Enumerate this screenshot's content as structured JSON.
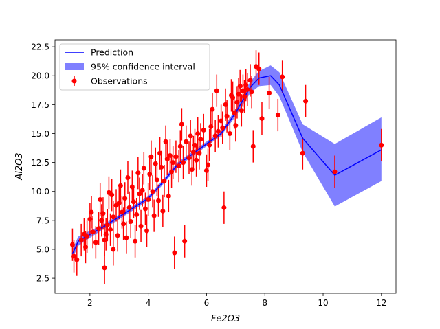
{
  "chart_data": {
    "type": "line",
    "xlabel": "Fe2O3",
    "ylabel": "Al2O3",
    "xlim": [
      0.8,
      12.5
    ],
    "ylim": [
      1.2,
      23.1
    ],
    "xticks": [
      2,
      4,
      6,
      8,
      10,
      12
    ],
    "yticks": [
      2.5,
      5.0,
      7.5,
      10.0,
      12.5,
      15.0,
      17.5,
      20.0,
      22.5
    ],
    "xtick_labels": [
      "2",
      "4",
      "6",
      "8",
      "10",
      "12"
    ],
    "ytick_labels": [
      "2.5",
      "5.0",
      "7.5",
      "10.0",
      "12.5",
      "15.0",
      "17.5",
      "20.0",
      "22.5"
    ],
    "grid": false,
    "legend_position": "top-left",
    "legend": [
      "Prediction",
      "95% confidence interval",
      "Observations"
    ],
    "colors": {
      "prediction": "#0000ff",
      "band": "#8080ff",
      "observations": "#ff0000"
    },
    "series": [
      {
        "name": "Prediction",
        "type": "line",
        "x": [
          1.4,
          1.6,
          2.0,
          2.5,
          3.0,
          3.5,
          4.0,
          4.5,
          5.0,
          5.5,
          6.0,
          6.5,
          7.0,
          7.5,
          7.8,
          8.2,
          8.5,
          9.3,
          10.4,
          12.0
        ],
        "y": [
          4.6,
          5.7,
          6.3,
          7.0,
          7.8,
          8.6,
          9.4,
          10.8,
          12.3,
          13.2,
          14.1,
          15.0,
          16.8,
          19.0,
          19.8,
          20.0,
          19.2,
          14.6,
          11.4,
          13.6
        ]
      },
      {
        "name": "95% confidence interval",
        "type": "band",
        "x": [
          1.4,
          1.6,
          2.0,
          2.5,
          3.0,
          3.5,
          4.0,
          4.5,
          5.0,
          5.5,
          6.0,
          6.5,
          7.0,
          7.5,
          7.8,
          8.2,
          8.5,
          9.3,
          10.4,
          12.0
        ],
        "lower": [
          4.2,
          5.3,
          6.0,
          6.8,
          7.6,
          8.4,
          9.2,
          10.6,
          12.1,
          13.0,
          13.9,
          14.8,
          16.5,
          18.5,
          19.1,
          19.2,
          18.2,
          13.4,
          8.7,
          10.9
        ],
        "upper": [
          5.0,
          6.1,
          6.6,
          7.2,
          8.0,
          8.8,
          9.6,
          11.0,
          12.5,
          13.4,
          14.3,
          15.2,
          17.1,
          19.5,
          20.4,
          20.9,
          20.3,
          15.8,
          14.1,
          16.4
        ]
      },
      {
        "name": "Observations",
        "type": "scatter_errorbar",
        "points": [
          [
            1.4,
            5.4
          ],
          [
            1.45,
            4.4
          ],
          [
            1.55,
            4.1
          ],
          [
            1.7,
            5.8
          ],
          [
            1.8,
            6.3
          ],
          [
            1.85,
            5.2
          ],
          [
            1.9,
            6.1
          ],
          [
            2.0,
            7.6
          ],
          [
            2.05,
            8.2
          ],
          [
            2.1,
            6.5
          ],
          [
            2.2,
            5.6
          ],
          [
            2.3,
            6.8
          ],
          [
            2.35,
            9.3
          ],
          [
            2.4,
            7.5
          ],
          [
            2.45,
            8.1
          ],
          [
            2.5,
            5.8
          ],
          [
            2.5,
            3.4
          ],
          [
            2.55,
            6.3
          ],
          [
            2.6,
            7.1
          ],
          [
            2.65,
            9.9
          ],
          [
            2.7,
            6.7
          ],
          [
            2.75,
            9.7
          ],
          [
            2.8,
            7.8
          ],
          [
            2.8,
            5.0
          ],
          [
            2.9,
            8.8
          ],
          [
            2.95,
            6.2
          ],
          [
            3.0,
            9.0
          ],
          [
            3.05,
            10.5
          ],
          [
            3.1,
            8.2
          ],
          [
            3.15,
            7.2
          ],
          [
            3.2,
            9.4
          ],
          [
            3.25,
            6.0
          ],
          [
            3.3,
            11.2
          ],
          [
            3.35,
            8.6
          ],
          [
            3.4,
            7.4
          ],
          [
            3.45,
            10.4
          ],
          [
            3.5,
            9.1
          ],
          [
            3.55,
            5.7
          ],
          [
            3.6,
            8.0
          ],
          [
            3.65,
            11.6
          ],
          [
            3.7,
            9.8
          ],
          [
            3.75,
            7.0
          ],
          [
            3.8,
            10.1
          ],
          [
            3.85,
            12.0
          ],
          [
            3.9,
            8.5
          ],
          [
            3.95,
            6.6
          ],
          [
            4.0,
            9.3
          ],
          [
            4.05,
            11.5
          ],
          [
            4.1,
            13.0
          ],
          [
            4.15,
            10.0
          ],
          [
            4.2,
            7.9
          ],
          [
            4.25,
            12.4
          ],
          [
            4.3,
            11.0
          ],
          [
            4.35,
            9.2
          ],
          [
            4.4,
            13.3
          ],
          [
            4.45,
            12.1
          ],
          [
            4.5,
            8.3
          ],
          [
            4.55,
            10.9
          ],
          [
            4.6,
            14.3
          ],
          [
            4.65,
            12.8
          ],
          [
            4.7,
            9.6
          ],
          [
            4.75,
            13.1
          ],
          [
            4.8,
            11.7
          ],
          [
            4.85,
            12.5
          ],
          [
            4.9,
            4.7
          ],
          [
            4.95,
            13.0
          ],
          [
            5.05,
            12.2
          ],
          [
            5.1,
            13.9
          ],
          [
            5.15,
            15.8
          ],
          [
            5.2,
            12.5
          ],
          [
            5.25,
            5.7
          ],
          [
            5.3,
            14.3
          ],
          [
            5.4,
            12.9
          ],
          [
            5.45,
            14.8
          ],
          [
            5.5,
            11.9
          ],
          [
            5.55,
            13.4
          ],
          [
            5.6,
            14.0
          ],
          [
            5.65,
            12.7
          ],
          [
            5.7,
            15.0
          ],
          [
            5.75,
            13.3
          ],
          [
            5.8,
            14.5
          ],
          [
            5.9,
            15.3
          ],
          [
            6.0,
            11.8
          ],
          [
            6.05,
            12.3
          ],
          [
            6.1,
            14.0
          ],
          [
            6.15,
            15.6
          ],
          [
            6.2,
            17.1
          ],
          [
            6.3,
            14.8
          ],
          [
            6.35,
            18.7
          ],
          [
            6.4,
            15.2
          ],
          [
            6.5,
            16.1
          ],
          [
            6.55,
            15.5
          ],
          [
            6.6,
            8.6
          ],
          [
            6.65,
            17.5
          ],
          [
            6.7,
            16.5
          ],
          [
            6.8,
            15.0
          ],
          [
            6.85,
            18.3
          ],
          [
            6.9,
            18.1
          ],
          [
            6.95,
            16.8
          ],
          [
            7.0,
            15.7
          ],
          [
            7.05,
            17.7
          ],
          [
            7.1,
            18.4
          ],
          [
            7.15,
            19.1
          ],
          [
            7.2,
            17.0
          ],
          [
            7.25,
            18.7
          ],
          [
            7.3,
            18.2
          ],
          [
            7.35,
            19.2
          ],
          [
            7.4,
            18.8
          ],
          [
            7.5,
            19.6
          ],
          [
            7.55,
            18.6
          ],
          [
            7.6,
            13.9
          ],
          [
            7.7,
            20.8
          ],
          [
            7.8,
            20.6
          ],
          [
            7.9,
            16.3
          ],
          [
            8.15,
            18.5
          ],
          [
            8.45,
            16.6
          ],
          [
            8.6,
            19.9
          ],
          [
            9.3,
            13.3
          ],
          [
            9.4,
            17.8
          ],
          [
            10.4,
            11.7
          ],
          [
            12.0,
            14.0
          ]
        ]
      }
    ]
  }
}
